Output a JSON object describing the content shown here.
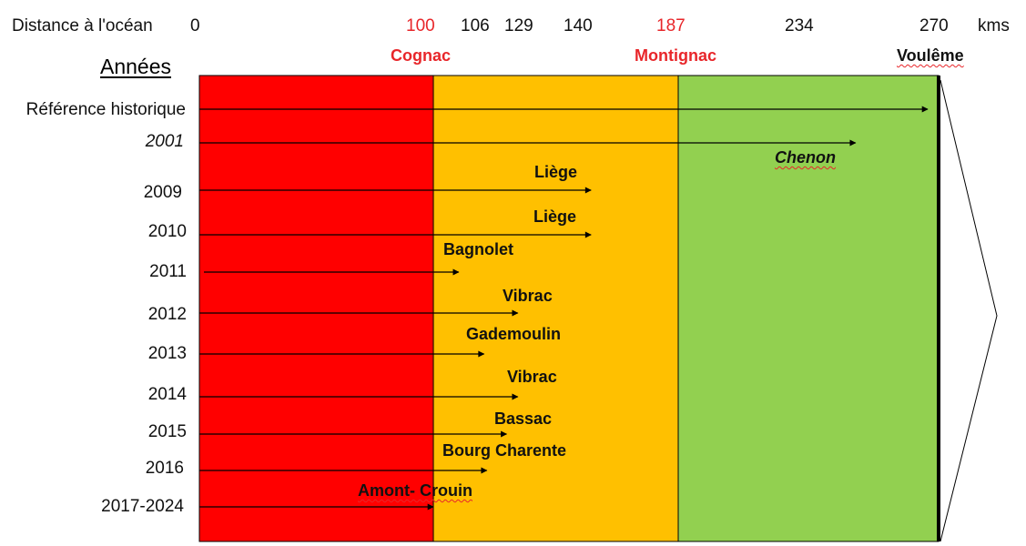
{
  "header": {
    "distance_label": "Distance à l'océan",
    "unit": "kms",
    "years_heading": "Années"
  },
  "distances": [
    {
      "value": "0",
      "highlight": false
    },
    {
      "value": "100",
      "highlight": true
    },
    {
      "value": "106",
      "highlight": false
    },
    {
      "value": "129",
      "highlight": false
    },
    {
      "value": "140",
      "highlight": false
    },
    {
      "value": "187",
      "highlight": true
    },
    {
      "value": "234",
      "highlight": false
    },
    {
      "value": "270",
      "highlight": false
    }
  ],
  "towns": {
    "cognac": "Cognac",
    "montignac": "Montignac",
    "voulême": "Voulême"
  },
  "zones": [
    {
      "from_km": 0,
      "to_km": 100,
      "color": "#ff0000"
    },
    {
      "from_km": 100,
      "to_km": 187,
      "color": "#ffc000"
    },
    {
      "from_km": 187,
      "to_km": 270,
      "color": "#92d050"
    }
  ],
  "rows": [
    {
      "year": "Référence historique",
      "reach_km": 270,
      "label": ""
    },
    {
      "year": "2001",
      "reach_km": 246,
      "label": "Chenon"
    },
    {
      "year": "2009",
      "reach_km": 156,
      "label": "Liège"
    },
    {
      "year": "2010",
      "reach_km": 156,
      "label": "Liège"
    },
    {
      "year": "2011",
      "reach_km": 109,
      "label": "Bagnolet"
    },
    {
      "year": "2012",
      "reach_km": 130,
      "label": "Vibrac"
    },
    {
      "year": "2013",
      "reach_km": 118,
      "label": "Gademoulin"
    },
    {
      "year": "2014",
      "reach_km": 130,
      "label": "Vibrac"
    },
    {
      "year": "2015",
      "reach_km": 126,
      "label": "Bassac"
    },
    {
      "year": "2016",
      "reach_km": 119,
      "label": "Bourg Charente"
    },
    {
      "year": "2017-2024",
      "reach_km": 100,
      "label": "Amont- Crouin"
    }
  ]
}
